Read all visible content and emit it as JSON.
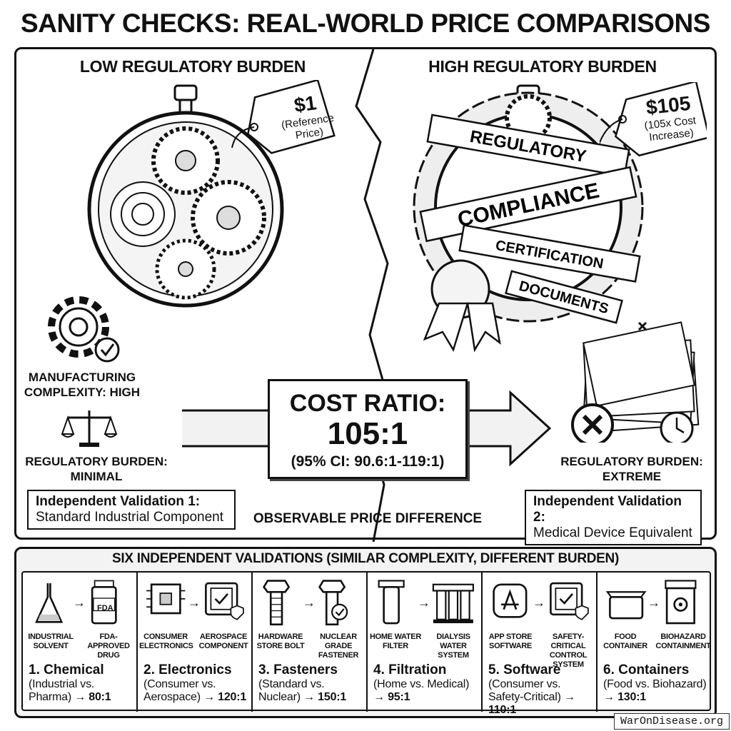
{
  "title": "SANITY CHECKS: REAL-WORLD PRICE COMPARISONS",
  "left": {
    "heading": "LOW REGULATORY BURDEN",
    "tag_price": "$1",
    "tag_note": "(Reference Price)",
    "complexity": "MANUFACTURING COMPLEXITY: HIGH",
    "burden": "REGULATORY BURDEN: MINIMAL",
    "validation_title": "Independent Validation 1:",
    "validation_desc": "Standard Industrial Component"
  },
  "right": {
    "heading": "HIGH REGULATORY BURDEN",
    "tag_price": "$105",
    "tag_note": "(105x Cost Increase)",
    "ribbons": [
      "REGULATORY",
      "COMPLIANCE",
      "CERTIFICATION",
      "DOCUMENTS"
    ],
    "burden": "REGULATORY BURDEN: EXTREME",
    "validation_title": "Independent Validation 2:",
    "validation_desc": "Medical Device Equivalent"
  },
  "center": {
    "ratio_label": "COST RATIO:",
    "ratio_value": "105:1",
    "ci": "(95% CI: 90.6:1-119:1)",
    "caption": "OBSERVABLE PRICE DIFFERENCE"
  },
  "validations": {
    "heading": "SIX INDEPENDENT VALIDATIONS (SIMILAR COMPLEXITY, DIFFERENT BURDEN)",
    "items": [
      {
        "low": "INDUSTRIAL SOLVENT",
        "high": "FDA-APPROVED DRUG",
        "title": "1. Chemical",
        "desc": "(Industrial vs. Pharma) →",
        "ratio": "80:1",
        "icon_low": "flask-icon",
        "icon_high": "drug-bottle-icon",
        "badge": "FDA"
      },
      {
        "low": "CONSUMER ELECTRONICS",
        "high": "AEROSPACE COMPONENT",
        "title": "2. Electronics",
        "desc": "(Consumer vs. Aerospace) →",
        "ratio": "120:1",
        "icon_low": "circuit-board-icon",
        "icon_high": "certified-chip-icon"
      },
      {
        "low": "HARDWARE STORE BOLT",
        "high": "NUCLEAR GRADE FASTENER",
        "title": "3. Fasteners",
        "desc": "(Standard vs. Nuclear) →",
        "ratio": "150:1",
        "icon_low": "bolt-icon",
        "icon_high": "certified-bolt-icon"
      },
      {
        "low": "HOME WATER FILTER",
        "high": "DIALYSIS WATER SYSTEM",
        "title": "4. Filtration",
        "desc": "(Home vs. Medical) →",
        "ratio": "95:1",
        "icon_low": "water-filter-icon",
        "icon_high": "dialysis-system-icon"
      },
      {
        "low": "APP STORE SOFTWARE",
        "high": "SAFETY-CRITICAL CONTROL SYSTEM",
        "title": "5. Software",
        "desc": "(Consumer vs. Safety-Critical) →",
        "ratio": "110:1",
        "icon_low": "app-store-icon",
        "icon_high": "certified-chip-icon"
      },
      {
        "low": "FOOD CONTAINER",
        "high": "BIOHAZARD CONTAINMENT",
        "title": "6. Containers",
        "desc": "(Food vs. Biohazard) →",
        "ratio": "130:1",
        "icon_low": "food-container-icon",
        "icon_high": "biohazard-container-icon"
      }
    ]
  },
  "watermark": "WarOnDisease.org"
}
